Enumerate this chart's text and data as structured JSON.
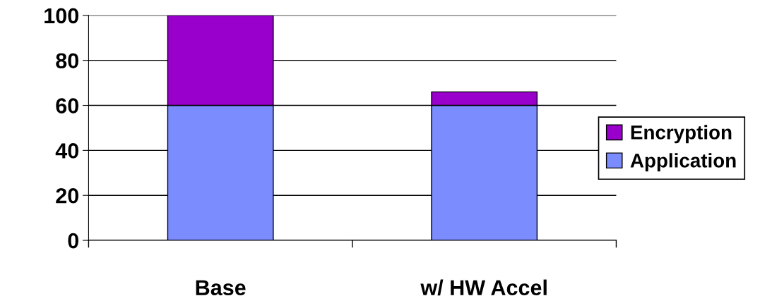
{
  "chart_data": {
    "type": "bar",
    "stacked": true,
    "categories": [
      "Base",
      "w/ HW Accel"
    ],
    "series": [
      {
        "name": "Application",
        "color": "#7b8cff",
        "values": [
          60,
          60
        ]
      },
      {
        "name": "Encryption",
        "color": "#9900cc",
        "values": [
          40,
          6
        ]
      }
    ],
    "ylim": [
      0,
      100
    ],
    "yticks": [
      0,
      20,
      40,
      60,
      80,
      100
    ],
    "grid": "y",
    "legend": "right"
  }
}
